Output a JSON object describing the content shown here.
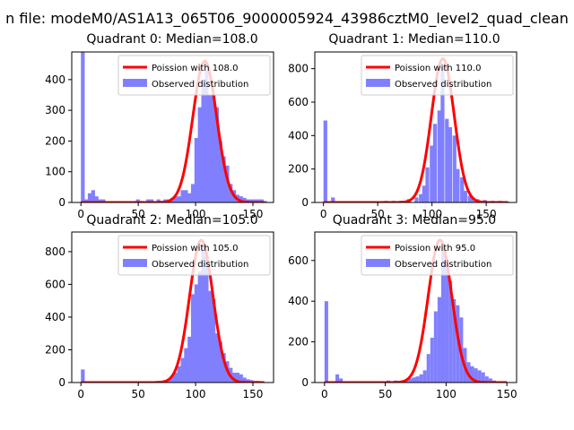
{
  "suptitle": "n file: modeM0/AS1A13_065T06_9000005924_43986cztM0_level2_quad_clean",
  "colors": {
    "histogram": "#8080ff",
    "poisson": "#ff0000",
    "axis": "#000000",
    "legend_border": "#cccccc"
  },
  "chart_data": [
    {
      "type": "bar",
      "title": "Quadrant 0: Median=108.0",
      "xlim": [
        -8,
        168
      ],
      "ylim": [
        0,
        490
      ],
      "xticks": [
        0,
        50,
        100,
        150
      ],
      "yticks": [
        0,
        100,
        200,
        300,
        400
      ],
      "bin_width": 3.3,
      "legend": {
        "placement": "top-right",
        "entries": [
          "Poission with 108.0",
          "Observed distribution"
        ]
      },
      "series": [
        {
          "name": "Observed distribution",
          "kind": "histogram",
          "bins": [
            [
              0,
              490
            ],
            [
              3,
              10
            ],
            [
              6,
              30
            ],
            [
              9,
              40
            ],
            [
              12,
              20
            ],
            [
              15,
              10
            ],
            [
              18,
              10
            ],
            [
              48,
              10
            ],
            [
              51,
              5
            ],
            [
              57,
              10
            ],
            [
              60,
              10
            ],
            [
              66,
              10
            ],
            [
              72,
              10
            ],
            [
              75,
              10
            ],
            [
              78,
              15
            ],
            [
              81,
              20
            ],
            [
              84,
              20
            ],
            [
              87,
              40
            ],
            [
              90,
              40
            ],
            [
              93,
              30
            ],
            [
              96,
              60
            ],
            [
              99,
              210
            ],
            [
              102,
              310
            ],
            [
              105,
              400
            ],
            [
              108,
              430
            ],
            [
              111,
              350
            ],
            [
              114,
              350
            ],
            [
              117,
              310
            ],
            [
              120,
              200
            ],
            [
              123,
              150
            ],
            [
              126,
              120
            ],
            [
              129,
              60
            ],
            [
              132,
              40
            ],
            [
              135,
              25
            ],
            [
              138,
              20
            ],
            [
              141,
              15
            ],
            [
              144,
              10
            ],
            [
              147,
              10
            ],
            [
              150,
              10
            ],
            [
              153,
              10
            ],
            [
              156,
              10
            ],
            [
              159,
              5
            ]
          ]
        },
        {
          "name": "Poission with 108.0",
          "kind": "line",
          "mean": 108,
          "peak": 460
        }
      ]
    },
    {
      "type": "bar",
      "title": "Quadrant 1: Median=110.0",
      "xlim": [
        -8,
        178
      ],
      "ylim": [
        0,
        900
      ],
      "xticks": [
        0,
        50,
        100,
        150
      ],
      "yticks": [
        0,
        200,
        400,
        600,
        800
      ],
      "bin_width": 3.5,
      "legend": {
        "placement": "top-right",
        "entries": [
          "Poission with 110.0",
          "Observed distribution"
        ]
      },
      "series": [
        {
          "name": "Observed distribution",
          "kind": "histogram",
          "bins": [
            [
              0,
              490
            ],
            [
              7,
              30
            ],
            [
              14,
              5
            ],
            [
              56,
              10
            ],
            [
              63,
              10
            ],
            [
              70,
              10
            ],
            [
              77,
              20
            ],
            [
              84,
              30
            ],
            [
              88,
              50
            ],
            [
              91,
              100
            ],
            [
              94,
              210
            ],
            [
              98,
              340
            ],
            [
              101,
              470
            ],
            [
              105,
              550
            ],
            [
              108,
              820
            ],
            [
              112,
              500
            ],
            [
              115,
              450
            ],
            [
              119,
              400
            ],
            [
              122,
              200
            ],
            [
              126,
              150
            ],
            [
              129,
              70
            ],
            [
              133,
              40
            ],
            [
              136,
              30
            ],
            [
              140,
              20
            ],
            [
              147,
              15
            ],
            [
              154,
              10
            ],
            [
              161,
              10
            ],
            [
              168,
              5
            ]
          ]
        },
        {
          "name": "Poission with 110.0",
          "kind": "line",
          "mean": 110,
          "peak": 860
        }
      ]
    },
    {
      "type": "bar",
      "title": "Quadrant 2: Median=105.0",
      "xlim": [
        -8,
        168
      ],
      "ylim": [
        0,
        920
      ],
      "xticks": [
        0,
        50,
        100,
        150
      ],
      "yticks": [
        0,
        200,
        400,
        600,
        800
      ],
      "bin_width": 3.3,
      "legend": {
        "placement": "top-right",
        "entries": [
          "Poission with 105.0",
          "Observed distribution"
        ]
      },
      "series": [
        {
          "name": "Observed distribution",
          "kind": "histogram",
          "bins": [
            [
              0,
              80
            ],
            [
              60,
              5
            ],
            [
              66,
              10
            ],
            [
              72,
              15
            ],
            [
              75,
              20
            ],
            [
              78,
              40
            ],
            [
              81,
              60
            ],
            [
              84,
              100
            ],
            [
              87,
              150
            ],
            [
              90,
              210
            ],
            [
              93,
              280
            ],
            [
              96,
              540
            ],
            [
              99,
              600
            ],
            [
              102,
              680
            ],
            [
              105,
              850
            ],
            [
              108,
              770
            ],
            [
              111,
              560
            ],
            [
              114,
              510
            ],
            [
              117,
              300
            ],
            [
              120,
              250
            ],
            [
              123,
              180
            ],
            [
              126,
              130
            ],
            [
              129,
              90
            ],
            [
              132,
              60
            ],
            [
              135,
              60
            ],
            [
              138,
              50
            ],
            [
              141,
              30
            ],
            [
              144,
              20
            ],
            [
              147,
              15
            ],
            [
              150,
              10
            ],
            [
              153,
              10
            ],
            [
              156,
              5
            ]
          ]
        },
        {
          "name": "Poission with 105.0",
          "kind": "line",
          "mean": 105,
          "peak": 870
        }
      ]
    },
    {
      "type": "bar",
      "title": "Quadrant 3: Median=95.0",
      "xlim": [
        -8,
        158
      ],
      "ylim": [
        0,
        740
      ],
      "xticks": [
        0,
        50,
        100,
        150
      ],
      "yticks": [
        0,
        200,
        400,
        600
      ],
      "bin_width": 3,
      "legend": {
        "placement": "top-right",
        "entries": [
          "Poission with 95.0",
          "Observed distribution"
        ]
      },
      "series": [
        {
          "name": "Observed distribution",
          "kind": "histogram",
          "bins": [
            [
              0,
              400
            ],
            [
              9,
              40
            ],
            [
              12,
              20
            ],
            [
              51,
              10
            ],
            [
              57,
              10
            ],
            [
              63,
              10
            ],
            [
              66,
              15
            ],
            [
              69,
              20
            ],
            [
              72,
              25
            ],
            [
              75,
              30
            ],
            [
              78,
              40
            ],
            [
              81,
              60
            ],
            [
              84,
              140
            ],
            [
              87,
              220
            ],
            [
              90,
              350
            ],
            [
              93,
              420
            ],
            [
              96,
              690
            ],
            [
              99,
              600
            ],
            [
              102,
              500
            ],
            [
              105,
              410
            ],
            [
              108,
              380
            ],
            [
              111,
              320
            ],
            [
              114,
              170
            ],
            [
              117,
              100
            ],
            [
              120,
              80
            ],
            [
              123,
              70
            ],
            [
              126,
              60
            ],
            [
              129,
              50
            ],
            [
              132,
              30
            ],
            [
              135,
              20
            ],
            [
              138,
              10
            ],
            [
              141,
              5
            ]
          ]
        },
        {
          "name": "Poission with 95.0",
          "kind": "line",
          "mean": 95,
          "peak": 700
        }
      ]
    }
  ]
}
